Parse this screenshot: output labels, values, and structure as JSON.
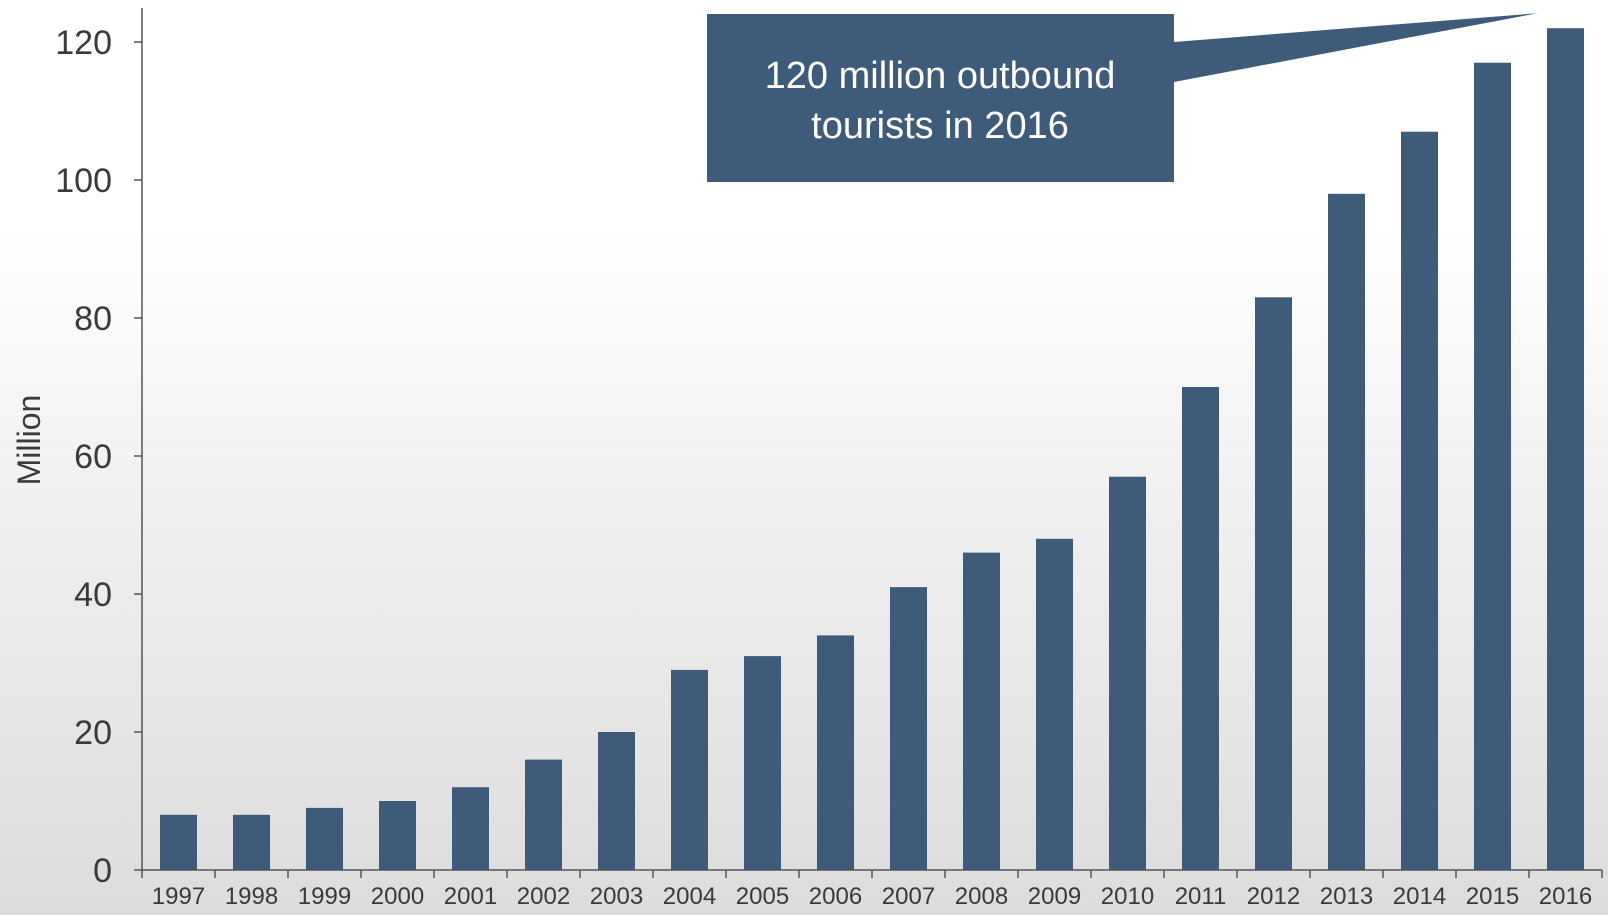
{
  "chart_data": {
    "type": "bar",
    "categories": [
      "1997",
      "1998",
      "1999",
      "2000",
      "2001",
      "2002",
      "2003",
      "2004",
      "2005",
      "2006",
      "2007",
      "2008",
      "2009",
      "2010",
      "2011",
      "2012",
      "2013",
      "2014",
      "2015",
      "2016"
    ],
    "values": [
      8,
      8,
      9,
      10,
      12,
      16,
      20,
      29,
      31,
      34,
      41,
      46,
      48,
      57,
      70,
      83,
      98,
      107,
      117,
      122
    ],
    "ylabel": "Million",
    "xlabel": "",
    "title": "",
    "ylim": [
      0,
      125
    ],
    "yticks": [
      "0",
      "20",
      "40",
      "60",
      "80",
      "100",
      "120"
    ],
    "grid": false,
    "bar_color": "#3f5b7a",
    "annotation": {
      "line1": "120 million outbound",
      "line2": "tourists in 2016",
      "target_category": "2016",
      "color": "#3f5b7a"
    }
  }
}
